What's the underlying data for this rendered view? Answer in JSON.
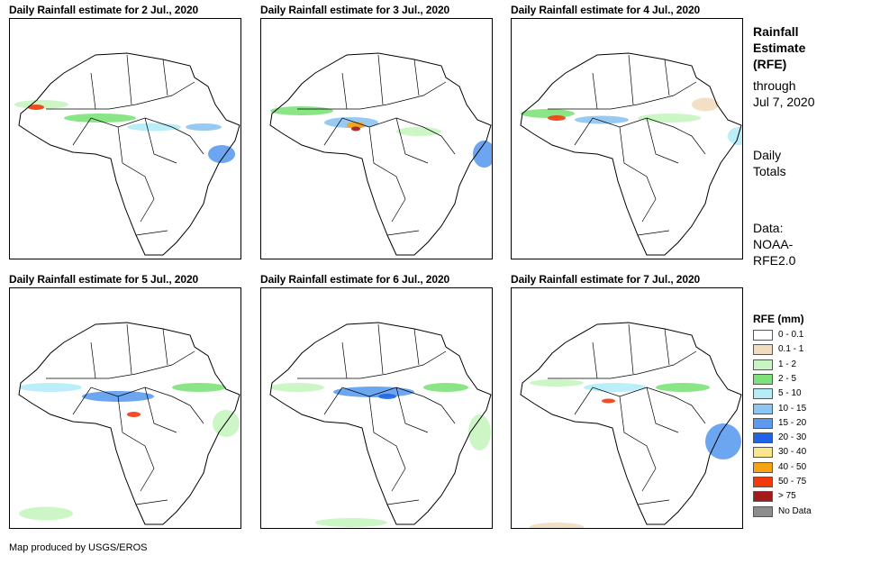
{
  "panels": [
    {
      "title": "Daily Rainfall estimate for 2 Jul., 2020"
    },
    {
      "title": "Daily Rainfall estimate for 3 Jul., 2020"
    },
    {
      "title": "Daily Rainfall estimate for 4 Jul., 2020"
    },
    {
      "title": "Daily Rainfall estimate for 5 Jul., 2020"
    },
    {
      "title": "Daily Rainfall estimate for 6 Jul., 2020"
    },
    {
      "title": "Daily Rainfall estimate for 7 Jul., 2020"
    }
  ],
  "side": {
    "title_line1": "Rainfall",
    "title_line2": "Estimate",
    "title_line3": "(RFE)",
    "through_line1": "through",
    "through_line2": "Jul 7, 2020",
    "totals_line1": "Daily",
    "totals_line2": "Totals",
    "data_line1": "Data:",
    "data_line2": "NOAA-",
    "data_line3": "RFE2.0"
  },
  "legend": {
    "title": "RFE (mm)",
    "items": [
      {
        "label": "0 - 0.1",
        "color": "#ffffff"
      },
      {
        "label": "0.1 - 1",
        "color": "#f2dcc0"
      },
      {
        "label": "1 - 2",
        "color": "#c8f5c0"
      },
      {
        "label": "2 - 5",
        "color": "#7de27a"
      },
      {
        "label": "5 - 10",
        "color": "#b4ecf7"
      },
      {
        "label": "10 - 15",
        "color": "#8cc4f2"
      },
      {
        "label": "15 - 20",
        "color": "#5c9cf0"
      },
      {
        "label": "20 - 30",
        "color": "#1f63e8"
      },
      {
        "label": "30 - 40",
        "color": "#fbe58b"
      },
      {
        "label": "40 - 50",
        "color": "#f5a30f"
      },
      {
        "label": "50 - 75",
        "color": "#f23a0a"
      },
      {
        "label": "> 75",
        "color": "#a41a1a"
      },
      {
        "label": "No Data",
        "color": "#8c8c8c"
      }
    ]
  },
  "credit": "Map produced by USGS/EROS"
}
